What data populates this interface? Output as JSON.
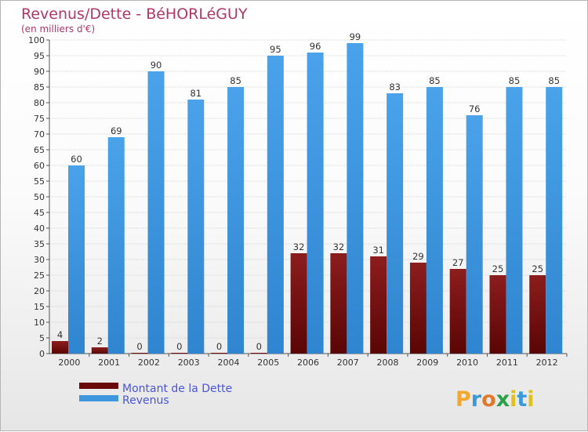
{
  "chart_data": {
    "type": "bar",
    "title": "Revenus/Dette - BéHORLéGUY",
    "subtitle": "(en milliers d'€)",
    "categories": [
      "2000",
      "2001",
      "2002",
      "2003",
      "2004",
      "2005",
      "2006",
      "2007",
      "2008",
      "2009",
      "2010",
      "2011",
      "2012"
    ],
    "series": [
      {
        "name": "Montant de la Dette",
        "color": "#7a1010",
        "values": [
          4,
          2,
          0,
          0,
          0,
          0,
          32,
          32,
          31,
          29,
          27,
          25,
          25
        ]
      },
      {
        "name": "Revenus",
        "color": "#3f97e0",
        "values": [
          60,
          69,
          90,
          81,
          85,
          95,
          96,
          99,
          83,
          85,
          76,
          85,
          85
        ]
      }
    ],
    "ylim": [
      0,
      100
    ],
    "ytick_step": 5,
    "grid": true,
    "legend": "bottom-left"
  },
  "logo": {
    "text": "Proxiti",
    "letters": [
      "P",
      "r",
      "o",
      "x",
      "i",
      "t",
      "i"
    ],
    "colors": [
      "#f0a830",
      "#3a9ad9",
      "#e07a2a",
      "#2aa04a",
      "#e0c020",
      "#3a9ad9",
      "#e0c020"
    ]
  }
}
